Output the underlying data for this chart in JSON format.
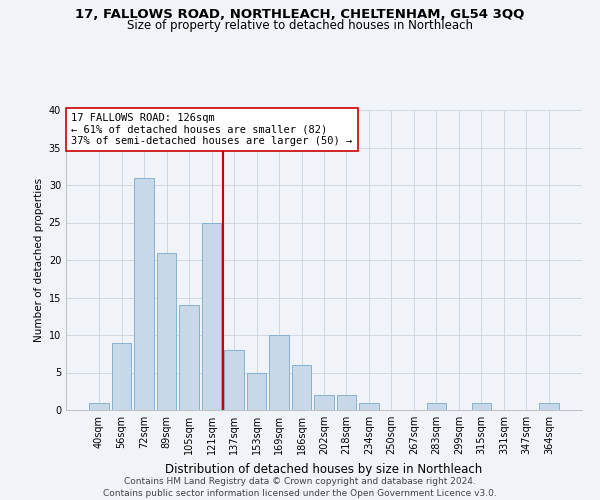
{
  "title": "17, FALLOWS ROAD, NORTHLEACH, CHELTENHAM, GL54 3QQ",
  "subtitle": "Size of property relative to detached houses in Northleach",
  "xlabel": "Distribution of detached houses by size in Northleach",
  "ylabel": "Number of detached properties",
  "bar_labels": [
    "40sqm",
    "56sqm",
    "72sqm",
    "89sqm",
    "105sqm",
    "121sqm",
    "137sqm",
    "153sqm",
    "169sqm",
    "186sqm",
    "202sqm",
    "218sqm",
    "234sqm",
    "250sqm",
    "267sqm",
    "283sqm",
    "299sqm",
    "315sqm",
    "331sqm",
    "347sqm",
    "364sqm"
  ],
  "bar_values": [
    1,
    9,
    31,
    21,
    14,
    25,
    8,
    5,
    10,
    6,
    2,
    2,
    1,
    0,
    0,
    1,
    0,
    1,
    0,
    0,
    1
  ],
  "bar_color": "#c8d8e8",
  "bar_edge_color": "#7aaac8",
  "vline_color": "#cc0000",
  "annotation_text": "17 FALLOWS ROAD: 126sqm\n← 61% of detached houses are smaller (82)\n37% of semi-detached houses are larger (50) →",
  "annotation_box_color": "#ffffff",
  "annotation_box_edge": "#cc0000",
  "ylim": [
    0,
    40
  ],
  "yticks": [
    0,
    5,
    10,
    15,
    20,
    25,
    30,
    35,
    40
  ],
  "footer_line1": "Contains HM Land Registry data © Crown copyright and database right 2024.",
  "footer_line2": "Contains public sector information licensed under the Open Government Licence v3.0.",
  "bg_color": "#f0f4f8",
  "grid_color": "#c8d4e0",
  "title_fontsize": 9.5,
  "subtitle_fontsize": 8.5,
  "xlabel_fontsize": 8.5,
  "ylabel_fontsize": 7.5,
  "tick_fontsize": 7,
  "annot_fontsize": 7.5,
  "footer_fontsize": 6.5
}
